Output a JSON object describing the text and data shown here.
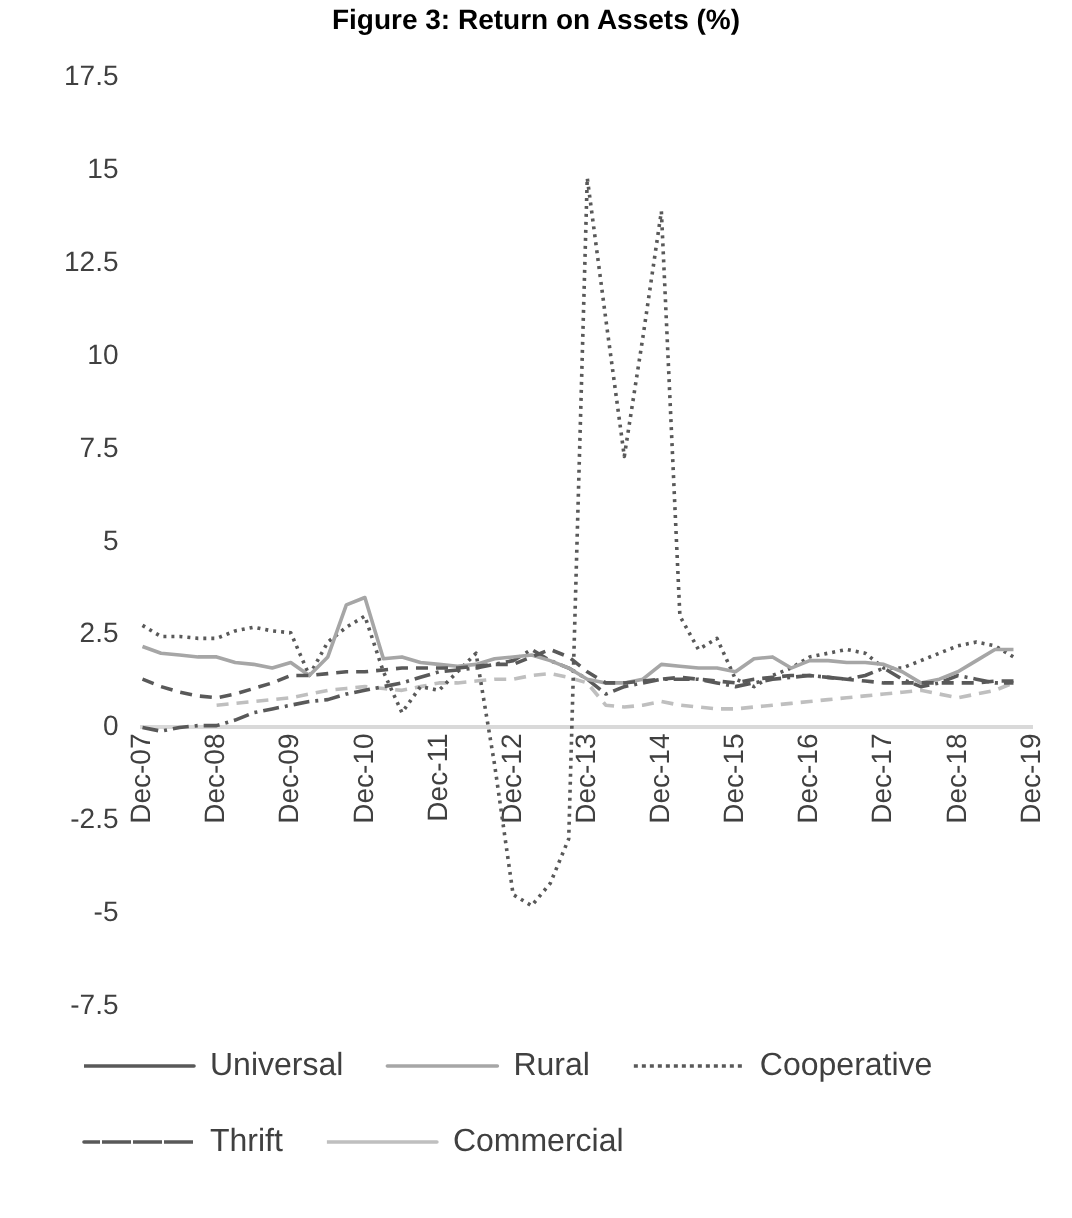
{
  "chart_data": {
    "type": "line",
    "title": "Figure 3: Return on Assets (%)",
    "categories": [
      "Dec-07",
      null,
      null,
      null,
      "Dec-08",
      null,
      null,
      null,
      "Dec-09",
      null,
      null,
      null,
      "Dec-10",
      null,
      null,
      null,
      "Dec-11",
      null,
      null,
      null,
      "Dec-12",
      null,
      null,
      null,
      "Dec-13",
      null,
      null,
      null,
      "Dec-14",
      null,
      null,
      null,
      "Dec-15",
      null,
      null,
      null,
      "Dec-16",
      null,
      null,
      null,
      "Dec-17",
      null,
      null,
      null,
      "Dec-18",
      null,
      null,
      null,
      "Dec-19"
    ],
    "series": [
      {
        "name": "Universal",
        "color": "#595959",
        "line_style": "dashed",
        "values": [
          1.3,
          1.1,
          0.95,
          0.85,
          0.8,
          0.9,
          1.05,
          1.2,
          1.4,
          1.4,
          1.45,
          1.5,
          1.5,
          1.55,
          1.6,
          1.6,
          1.6,
          1.6,
          1.65,
          1.7,
          1.7,
          1.9,
          2.1,
          1.9,
          1.5,
          1.2,
          1.2,
          1.25,
          1.3,
          1.35,
          1.3,
          1.25,
          1.2,
          1.3,
          1.35,
          1.4,
          1.4,
          1.35,
          1.3,
          1.25,
          1.2,
          1.2,
          1.2,
          1.2,
          1.2,
          1.2,
          1.25,
          1.25,
          null
        ]
      },
      {
        "name": "Rural",
        "color": "#a6a6a6",
        "line_style": "solid",
        "values": [
          2.18,
          2.0,
          1.95,
          1.9,
          1.9,
          1.75,
          1.7,
          1.6,
          1.75,
          1.4,
          1.9,
          3.3,
          3.5,
          1.85,
          1.9,
          1.75,
          1.7,
          1.65,
          1.7,
          1.85,
          1.9,
          1.95,
          1.8,
          1.6,
          1.3,
          1.2,
          1.2,
          1.3,
          1.7,
          1.65,
          1.6,
          1.6,
          1.5,
          1.85,
          1.9,
          1.6,
          1.8,
          1.8,
          1.75,
          1.75,
          1.7,
          1.5,
          1.2,
          1.3,
          1.5,
          1.8,
          2.1,
          2.1,
          null
        ]
      },
      {
        "name": "Cooperative",
        "color": "#595959",
        "line_style": "dotted",
        "values": [
          2.75,
          2.45,
          2.45,
          2.4,
          2.4,
          2.6,
          2.7,
          2.6,
          2.55,
          1.4,
          2.3,
          2.7,
          3.0,
          1.5,
          0.4,
          1.1,
          1.0,
          1.5,
          2.0,
          -1.0,
          -4.5,
          -4.8,
          -4.2,
          -3.0,
          14.8,
          11.0,
          7.3,
          10.5,
          13.9,
          3.0,
          2.1,
          2.4,
          1.3,
          1.1,
          1.4,
          1.6,
          1.9,
          2.0,
          2.1,
          2.0,
          1.6,
          1.6,
          1.8,
          2.0,
          2.2,
          2.3,
          2.2,
          1.9,
          null
        ]
      },
      {
        "name": "Thrift",
        "color": "#595959",
        "line_style": "dashdot",
        "values": [
          0,
          -0.1,
          0,
          0.05,
          0.05,
          0.2,
          0.4,
          0.5,
          0.6,
          0.7,
          0.75,
          0.9,
          1.0,
          1.1,
          1.2,
          1.35,
          1.5,
          1.55,
          1.6,
          1.7,
          1.8,
          2.1,
          1.8,
          1.6,
          1.3,
          0.9,
          1.1,
          1.2,
          1.3,
          1.3,
          1.3,
          1.2,
          1.1,
          1.2,
          1.3,
          1.35,
          1.4,
          1.35,
          1.3,
          1.4,
          1.6,
          1.3,
          1.1,
          1.2,
          1.4,
          1.3,
          1.2,
          1.2,
          null
        ]
      },
      {
        "name": "Commercial",
        "color": "#bfbfbf",
        "line_style": "dashed",
        "values": [
          null,
          null,
          null,
          null,
          0.6,
          0.65,
          0.7,
          0.75,
          0.8,
          0.9,
          1.0,
          1.05,
          1.1,
          1.05,
          1.0,
          1.1,
          1.2,
          1.2,
          1.25,
          1.3,
          1.3,
          1.4,
          1.45,
          1.35,
          1.2,
          0.6,
          0.55,
          0.6,
          0.7,
          0.6,
          0.55,
          0.5,
          0.5,
          0.55,
          0.6,
          0.65,
          0.7,
          0.75,
          0.8,
          0.85,
          0.9,
          0.95,
          1.0,
          0.9,
          0.8,
          0.9,
          1.0,
          1.2,
          null
        ]
      }
    ],
    "ylim": [
      -7.5,
      17.5
    ],
    "yticks": [
      -7.5,
      -5,
      -2.5,
      0,
      2.5,
      5,
      7.5,
      10,
      12.5,
      15,
      17.5
    ],
    "grid": false,
    "legend": "bottom"
  }
}
